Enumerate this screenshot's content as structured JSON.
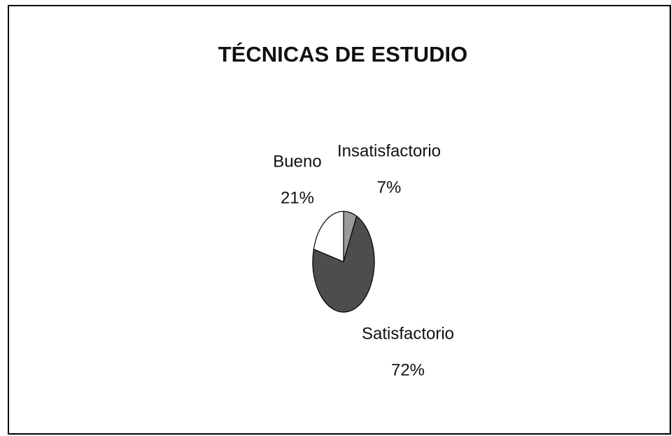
{
  "chart_data": {
    "type": "pie",
    "title": "TÉCNICAS DE ESTUDIO",
    "categories": [
      "Insatisfactorio",
      "Satisfactorio",
      "Bueno"
    ],
    "values": [
      7,
      72,
      21
    ],
    "value_labels": [
      "7%",
      "72%",
      "21%"
    ],
    "colors": [
      "#9a9a9a",
      "#4d4d4d",
      "#ffffff"
    ]
  }
}
